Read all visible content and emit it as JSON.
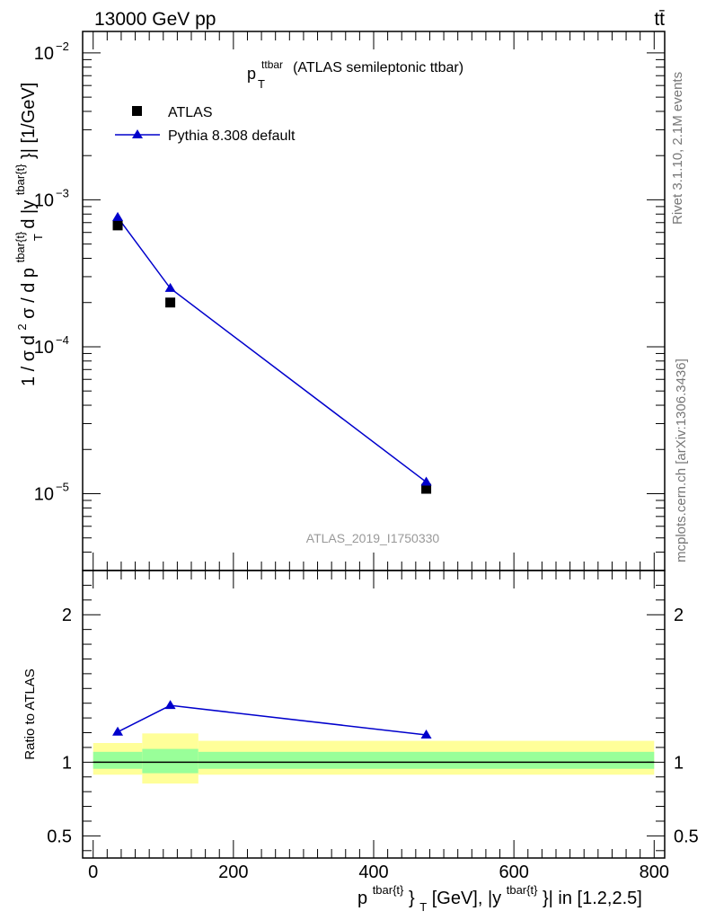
{
  "header": {
    "energy_label": "13000 GeV pp",
    "process_label": "tt̄"
  },
  "side_labels": {
    "rivet": "Rivet 3.1.10,  2.1M events",
    "mcplots": "mcplots.cern.ch [arXiv:1306.3436]"
  },
  "chart_data": [
    {
      "type": "scatter",
      "title": "p_T^ttbar (ATLAS semileptonic ttbar)",
      "title_main": "p",
      "title_sub": "T",
      "title_sup": "ttbar",
      "title_rest": "(ATLAS semileptonic ttbar)",
      "watermark": "ATLAS_2019_I1750330",
      "ylabel": "1 / σ d²σ / d p^{tbar{t}}_T d |y^{tbar{t}}| [1/GeV]",
      "ylabel_parts": {
        "a": "1 / σ d",
        "a_sup": "2",
        "b": "σ  /  d p",
        "b_sup": "tbar{t}",
        "b_sub": "T",
        "c": " d |y",
        "c_sup": "tbar{t}",
        "d": "}| [1/GeV]"
      },
      "yscale": "log",
      "ylim": [
        3e-06,
        0.014
      ],
      "y_ticks": [
        {
          "value": 1e-05,
          "base": "10",
          "exp": "−5"
        },
        {
          "value": 0.0001,
          "base": "10",
          "exp": "−4"
        },
        {
          "value": 0.001,
          "base": "10",
          "exp": "−3"
        },
        {
          "value": 0.01,
          "base": "10",
          "exp": "−2"
        }
      ],
      "xlim": [
        -15,
        815
      ],
      "legend_position": "top-left",
      "series": [
        {
          "name": "ATLAS",
          "marker": "square",
          "color": "#000000",
          "points": [
            {
              "x": 35,
              "y": 0.00067
            },
            {
              "x": 110,
              "y": 0.0002
            },
            {
              "x": 475,
              "y": 1.08e-05
            }
          ]
        },
        {
          "name": "Pythia 8.308 default",
          "marker": "triangle",
          "color": "#0000cc",
          "points": [
            {
              "x": 35,
              "y": 0.00076
            },
            {
              "x": 110,
              "y": 0.00025
            },
            {
              "x": 475,
              "y": 1.2e-05
            }
          ]
        }
      ]
    },
    {
      "type": "line",
      "ylabel": "Ratio to ATLAS",
      "ylim": [
        0.35,
        2.3
      ],
      "y_ticks": [
        {
          "value": 0.5,
          "label": "0.5"
        },
        {
          "value": 1,
          "label": "1"
        },
        {
          "value": 2,
          "label": "2"
        }
      ],
      "xlim": [
        -15,
        815
      ],
      "x_ticks": [
        {
          "value": 0,
          "label": "0"
        },
        {
          "value": 200,
          "label": "200"
        },
        {
          "value": 400,
          "label": "400"
        },
        {
          "value": 600,
          "label": "600"
        },
        {
          "value": 800,
          "label": "800"
        }
      ],
      "xlabel": "p^{tbar{t}}_T [GeV], |y^{tbar{t}}| in [1.2,2.5]",
      "xlabel_parts": {
        "a": "p",
        "a_sup": "tbar{t}",
        "b": "}",
        "b_sub": "T",
        "c": " [GeV], |y",
        "c_sup": "tbar{t}",
        "d": "}| in [1.2,2.5]"
      },
      "bands": [
        {
          "x0": 0,
          "x1": 70,
          "inner": [
            0.955,
            1.07
          ],
          "outer": [
            0.915,
            1.13
          ]
        },
        {
          "x0": 70,
          "x1": 150,
          "inner": [
            0.925,
            1.09
          ],
          "outer": [
            0.855,
            1.195
          ]
        },
        {
          "x0": 150,
          "x1": 800,
          "inner": [
            0.955,
            1.07
          ],
          "outer": [
            0.915,
            1.145
          ]
        }
      ],
      "band_colors": {
        "outer": "#ffff99",
        "inner": "#99ff99"
      },
      "series": [
        {
          "name": "Pythia 8.308 default",
          "color": "#0000cc",
          "points": [
            {
              "x": 35,
              "y": 1.205
            },
            {
              "x": 110,
              "y": 1.385
            },
            {
              "x": 475,
              "y": 1.185
            }
          ]
        }
      ]
    }
  ]
}
